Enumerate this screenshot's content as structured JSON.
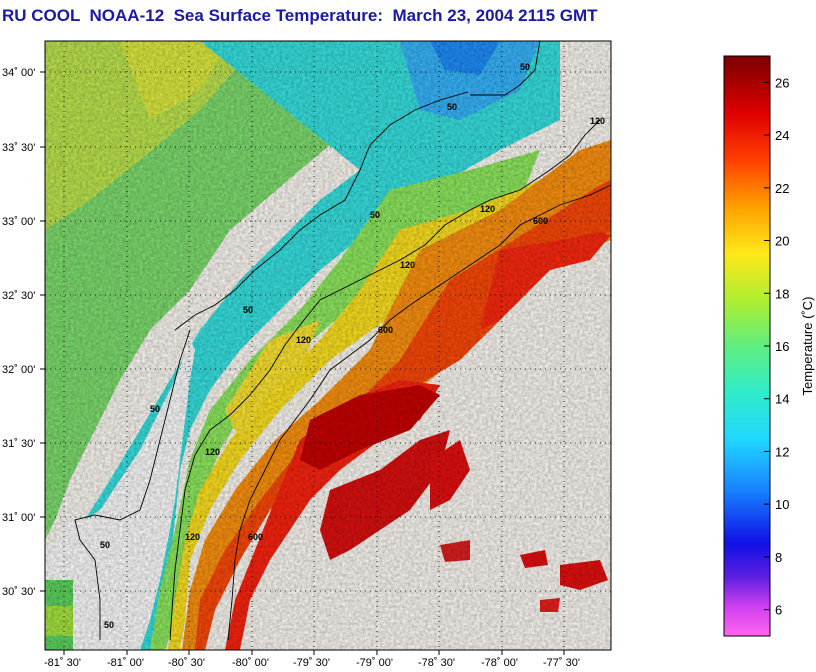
{
  "title": "RU COOL  NOAA-12  Sea Surface Temperature:  March 23, 2004 2115 GMT",
  "latitude_labels": [
    "34˚ 00'",
    "33˚ 30'",
    "33˚ 00'",
    "32˚ 30'",
    "32˚ 00'",
    "31˚ 30'",
    "31˚ 00'",
    "30˚ 30'"
  ],
  "longitude_labels": [
    "-81˚ 30'",
    "-81˚ 00'",
    "-80˚ 30'",
    "-80˚ 00'",
    "-79˚ 30'",
    "-79˚ 00'",
    "-78˚ 30'",
    "-78˚ 00'",
    "-77˚ 30'"
  ],
  "contour_labels": [
    "50",
    "50",
    "50",
    "50",
    "50",
    "50",
    "50",
    "120",
    "120",
    "120",
    "120",
    "120",
    "120",
    "600",
    "600",
    "600"
  ],
  "colorbar": {
    "label": "Temperature (˚C)",
    "min": 5,
    "max": 27,
    "ticks": [
      "6",
      "8",
      "10",
      "12",
      "14",
      "16",
      "18",
      "20",
      "22",
      "24",
      "26"
    ],
    "colors": [
      "#ff66ee",
      "#b030f0",
      "#2020ee",
      "#1890ff",
      "#30e6f0",
      "#40e8a8",
      "#a8ee40",
      "#ffe418",
      "#ff9000",
      "#ff2000",
      "#d00000",
      "#8a0000"
    ]
  },
  "colors": {
    "title": "#1a1aa6",
    "no_data": "#fffcf6",
    "land": "#ffffff"
  }
}
